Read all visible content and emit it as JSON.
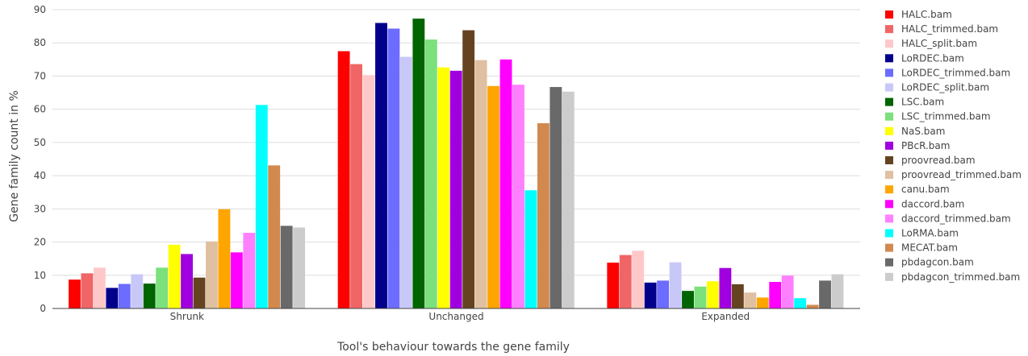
{
  "chart_data": {
    "type": "bar",
    "title": "",
    "xlabel": "Tool's behaviour towards the gene family",
    "ylabel": "Gene family count in %",
    "ylim": [
      0,
      90
    ],
    "yticks": [
      0,
      10,
      20,
      30,
      40,
      50,
      60,
      70,
      80,
      90
    ],
    "grid": true,
    "legend_position": "right",
    "categories": [
      "Shrunk",
      "Unchanged",
      "Expanded"
    ],
    "series": [
      {
        "name": "HALC.bam",
        "color": "#ff0000",
        "values": [
          8.7,
          77.5,
          13.8
        ]
      },
      {
        "name": "HALC_trimmed.bam",
        "color": "#f06666",
        "values": [
          10.6,
          73.6,
          16.1
        ]
      },
      {
        "name": "HALC_split.bam",
        "color": "#ffc8c8",
        "values": [
          12.3,
          70.3,
          17.4
        ]
      },
      {
        "name": "LoRDEC.bam",
        "color": "#00008b",
        "values": [
          6.2,
          86.0,
          7.8
        ]
      },
      {
        "name": "LoRDEC_trimmed.bam",
        "color": "#6c6cff",
        "values": [
          7.4,
          84.3,
          8.4
        ]
      },
      {
        "name": "LoRDEC_split.bam",
        "color": "#c8c8f8",
        "values": [
          10.3,
          75.8,
          13.9
        ]
      },
      {
        "name": "LSC.bam",
        "color": "#006400",
        "values": [
          7.5,
          87.3,
          5.3
        ]
      },
      {
        "name": "LSC_trimmed.bam",
        "color": "#7ce07c",
        "values": [
          12.3,
          81.0,
          6.6
        ]
      },
      {
        "name": "NaS.bam",
        "color": "#ffff00",
        "values": [
          19.2,
          72.6,
          8.2
        ]
      },
      {
        "name": "PBcR.bam",
        "color": "#a000e0",
        "values": [
          16.4,
          71.6,
          12.2
        ]
      },
      {
        "name": "proovread.bam",
        "color": "#654321",
        "values": [
          9.3,
          83.8,
          7.3
        ]
      },
      {
        "name": "proovread_trimmed.bam",
        "color": "#dfc0a0",
        "values": [
          20.2,
          74.8,
          4.8
        ]
      },
      {
        "name": "canu.bam",
        "color": "#ffa500",
        "values": [
          29.9,
          67.0,
          3.3
        ]
      },
      {
        "name": "daccord.bam",
        "color": "#ff00ff",
        "values": [
          16.9,
          75.0,
          8.0
        ]
      },
      {
        "name": "daccord_trimmed.bam",
        "color": "#ff80ff",
        "values": [
          22.8,
          67.4,
          9.9
        ]
      },
      {
        "name": "LoRMA.bam",
        "color": "#00ffff",
        "values": [
          61.3,
          35.6,
          3.1
        ]
      },
      {
        "name": "MECAT.bam",
        "color": "#d2894e",
        "values": [
          43.1,
          55.8,
          1.1
        ]
      },
      {
        "name": "pbdagcon.bam",
        "color": "#696969",
        "values": [
          24.9,
          66.7,
          8.4
        ]
      },
      {
        "name": "pbdagcon_trimmed.bam",
        "color": "#cccccc",
        "values": [
          24.4,
          65.3,
          10.3
        ]
      }
    ]
  }
}
